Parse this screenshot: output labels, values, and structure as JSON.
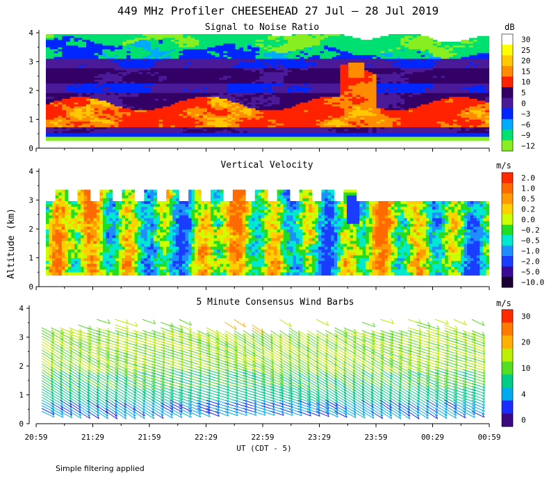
{
  "title": "449 MHz Profiler CHEESEHEAD 27 Jul – 28 Jul 2019",
  "shared_ylabel": "Altitude (km)",
  "xlabel": "UT  (CDT - 5)",
  "x_ticks": [
    "20:59",
    "21:29",
    "21:59",
    "22:29",
    "22:59",
    "23:29",
    "23:59",
    "00:29",
    "00:59"
  ],
  "y_ticks": [
    "0",
    "1",
    "2",
    "3",
    "4"
  ],
  "footnote": "Simple filtering applied",
  "chart_data": [
    {
      "type": "heatmap",
      "title": "Signal to Noise Ratio",
      "unit": "dB",
      "x_range": [
        "20:59",
        "00:59"
      ],
      "ylim": [
        0,
        4.1
      ],
      "colorbar": [
        {
          "label": "30",
          "color": "#ffffff"
        },
        {
          "label": "25",
          "color": "#ffff00"
        },
        {
          "label": "20",
          "color": "#ffc800"
        },
        {
          "label": "15",
          "color": "#ff8c00"
        },
        {
          "label": "10",
          "color": "#ff2200"
        },
        {
          "label": "5",
          "color": "#330066"
        },
        {
          "label": "0",
          "color": "#4a1a99"
        },
        {
          "label": "−3",
          "color": "#0026ff"
        },
        {
          "label": "−6",
          "color": "#00aaff"
        },
        {
          "label": "−9",
          "color": "#00e070"
        },
        {
          "label": "−12",
          "color": "#88ee22"
        }
      ]
    },
    {
      "type": "heatmap",
      "title": "Vertical Velocity",
      "unit": "m/s",
      "x_range": [
        "20:59",
        "00:59"
      ],
      "ylim": [
        0,
        4.1
      ],
      "colorbar": [
        {
          "label": "2.0",
          "color": "#ff2a00"
        },
        {
          "label": "1.0",
          "color": "#ff6a00"
        },
        {
          "label": "0.5",
          "color": "#ff9a00"
        },
        {
          "label": "0.2",
          "color": "#ffd000"
        },
        {
          "label": "0.0",
          "color": "#ccff00"
        },
        {
          "label": "−0.2",
          "color": "#22dd22"
        },
        {
          "label": "−0.5",
          "color": "#00e8d0"
        },
        {
          "label": "−1.0",
          "color": "#1f8fff"
        },
        {
          "label": "−2.0",
          "color": "#1a3dff"
        },
        {
          "label": "−5.0",
          "color": "#3b0a99"
        },
        {
          "label": "−10.0",
          "color": "#1a0033"
        }
      ]
    },
    {
      "type": "scatter",
      "title": "5 Minute Consensus Wind Barbs",
      "unit": "m/s",
      "x_range": [
        "20:59",
        "00:59"
      ],
      "ylim": [
        0,
        4.1
      ],
      "colorbar": [
        {
          "label": "30",
          "color": "#ff2a00"
        },
        {
          "label": "",
          "color": "#ff7a00"
        },
        {
          "label": "20",
          "color": "#ffb000"
        },
        {
          "label": "",
          "color": "#bbee00"
        },
        {
          "label": "10",
          "color": "#55dd22"
        },
        {
          "label": "",
          "color": "#00cc88"
        },
        {
          "label": "4",
          "color": "#00aaee"
        },
        {
          "label": "",
          "color": "#1a2dff"
        },
        {
          "label": "0",
          "color": "#3b0a80"
        }
      ]
    }
  ]
}
